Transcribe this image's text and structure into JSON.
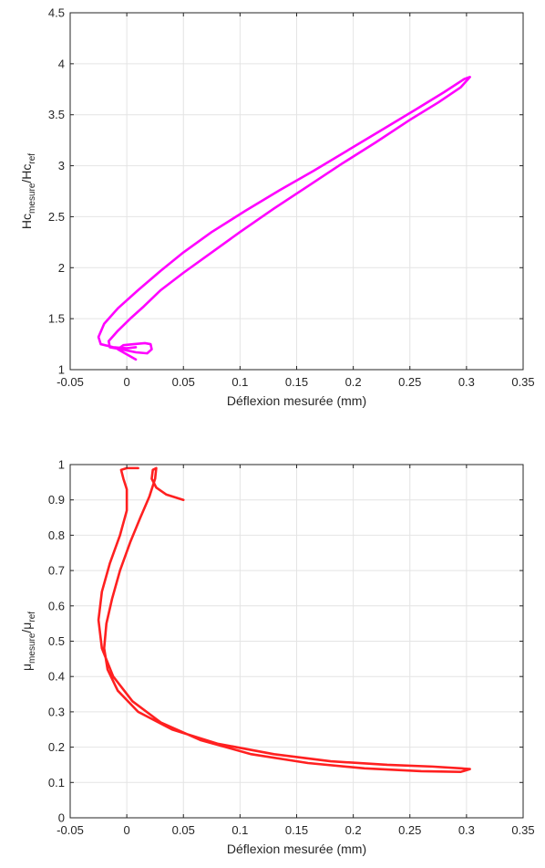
{
  "chart_data": [
    {
      "type": "line",
      "xlabel": "Déflexion mesurée (mm)",
      "ylabel": {
        "base": "Hc",
        "sub1": "mesure",
        "mid": "/Hc",
        "sub2": "ref"
      },
      "xlim": [
        -0.05,
        0.35
      ],
      "ylim": [
        1,
        4.5
      ],
      "xticks": [
        -0.05,
        0,
        0.05,
        0.1,
        0.15,
        0.2,
        0.25,
        0.3,
        0.35
      ],
      "xtick_labels": [
        "-0.05",
        "0",
        "0.05",
        "0.1",
        "0.15",
        "0.2",
        "0.25",
        "0.3",
        "0.35"
      ],
      "yticks": [
        1,
        1.5,
        2,
        2.5,
        3,
        3.5,
        4,
        4.5
      ],
      "ytick_labels": [
        "1",
        "1.5",
        "2",
        "2.5",
        "3",
        "3.5",
        "4",
        "4.5"
      ],
      "grid": true,
      "series": [
        {
          "color": "#ff00ff",
          "x": [
            0.008,
            0.0,
            -0.008,
            -0.003,
            0.006,
            0.016,
            0.021,
            0.022,
            0.018,
            0.008,
            -0.005,
            -0.015,
            -0.016,
            -0.008,
            0.003,
            0.015,
            0.03,
            0.05,
            0.075,
            0.1,
            0.13,
            0.16,
            0.19,
            0.22,
            0.25,
            0.275,
            0.295,
            0.303,
            0.298,
            0.28,
            0.255,
            0.225,
            0.195,
            0.165,
            0.135,
            0.105,
            0.075,
            0.05,
            0.03,
            0.01,
            -0.008,
            -0.02,
            -0.025,
            -0.023,
            -0.012,
            0.0,
            0.008
          ],
          "y": [
            1.1,
            1.15,
            1.2,
            1.24,
            1.25,
            1.26,
            1.25,
            1.2,
            1.16,
            1.17,
            1.2,
            1.22,
            1.28,
            1.38,
            1.5,
            1.62,
            1.78,
            1.95,
            2.15,
            2.35,
            2.58,
            2.8,
            3.02,
            3.23,
            3.45,
            3.62,
            3.77,
            3.87,
            3.85,
            3.72,
            3.55,
            3.35,
            3.15,
            2.95,
            2.76,
            2.56,
            2.35,
            2.15,
            1.97,
            1.78,
            1.6,
            1.45,
            1.32,
            1.25,
            1.22,
            1.21,
            1.22
          ]
        }
      ]
    },
    {
      "type": "line",
      "xlabel": "Déflexion mesurée (mm)",
      "ylabel": {
        "base": "μ",
        "sub1": "mesure",
        "mid": "/μ",
        "sub2": "ref"
      },
      "xlim": [
        -0.05,
        0.35
      ],
      "ylim": [
        0,
        1
      ],
      "xticks": [
        -0.05,
        0,
        0.05,
        0.1,
        0.15,
        0.2,
        0.25,
        0.3,
        0.35
      ],
      "xtick_labels": [
        "-0.05",
        "0",
        "0.05",
        "0.1",
        "0.15",
        "0.2",
        "0.25",
        "0.3",
        "0.35"
      ],
      "yticks": [
        0,
        0.1,
        0.2,
        0.3,
        0.4,
        0.5,
        0.6,
        0.7,
        0.8,
        0.9,
        1
      ],
      "ytick_labels": [
        "0",
        "0.1",
        "0.2",
        "0.3",
        "0.4",
        "0.5",
        "0.6",
        "0.7",
        "0.8",
        "0.9",
        "1"
      ],
      "grid": true,
      "series": [
        {
          "color": "#ff2020",
          "x": [
            0.05,
            0.035,
            0.026,
            0.022,
            0.023,
            0.026,
            0.025,
            0.02,
            0.012,
            0.003,
            -0.006,
            -0.013,
            -0.018,
            -0.02,
            -0.017,
            -0.008,
            0.01,
            0.04,
            0.08,
            0.13,
            0.18,
            0.23,
            0.27,
            0.295,
            0.303,
            0.295,
            0.26,
            0.21,
            0.16,
            0.11,
            0.065,
            0.03,
            0.005,
            -0.012,
            -0.022,
            -0.025,
            -0.022,
            -0.015,
            -0.006,
            0.0,
            0.0,
            -0.003,
            -0.005,
            0.0,
            0.01
          ],
          "y": [
            0.9,
            0.915,
            0.935,
            0.96,
            0.985,
            0.99,
            0.96,
            0.91,
            0.85,
            0.78,
            0.7,
            0.62,
            0.55,
            0.48,
            0.42,
            0.36,
            0.3,
            0.25,
            0.21,
            0.18,
            0.16,
            0.15,
            0.145,
            0.14,
            0.138,
            0.13,
            0.132,
            0.14,
            0.155,
            0.18,
            0.22,
            0.27,
            0.33,
            0.4,
            0.48,
            0.56,
            0.64,
            0.72,
            0.8,
            0.87,
            0.93,
            0.96,
            0.985,
            0.99,
            0.99
          ]
        }
      ]
    }
  ]
}
